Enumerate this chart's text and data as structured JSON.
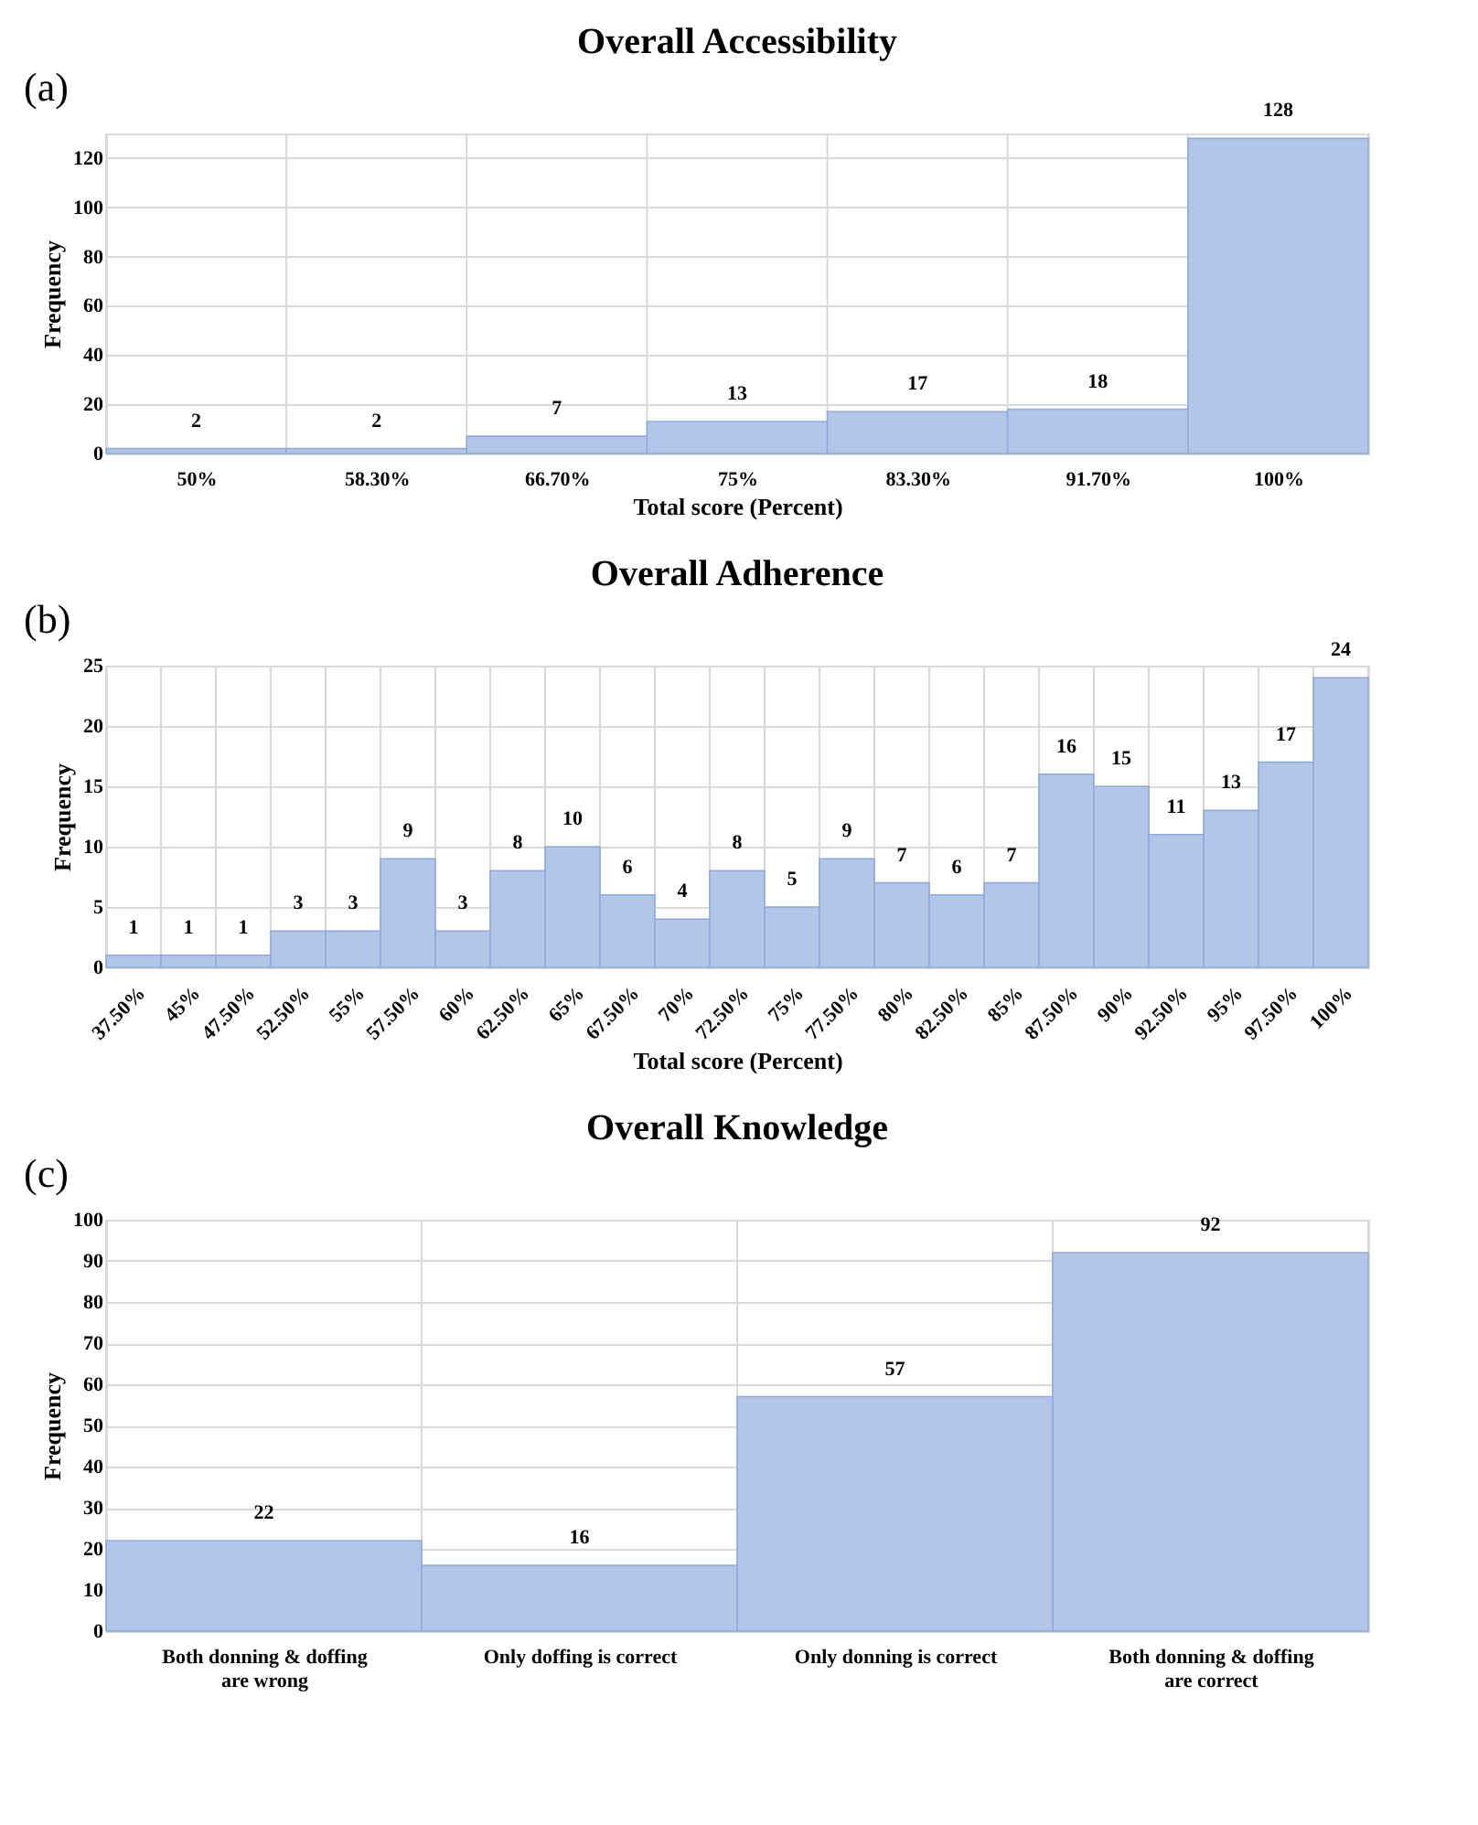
{
  "chart_data": [
    {
      "type": "bar",
      "title": "Overall Accessibility",
      "xlabel": "Total score (Percent)",
      "ylabel": "Frequency",
      "annotations": [
        "(a)"
      ],
      "categories": [
        "50%",
        "58.30%",
        "66.70%",
        "75%",
        "83.30%",
        "91.70%",
        "100%"
      ],
      "values": [
        2,
        2,
        7,
        13,
        17,
        18,
        128
      ],
      "color": "#b4c6e7",
      "ylim": [
        0,
        130
      ],
      "yticks": [
        0,
        20,
        40,
        60,
        80,
        100,
        120
      ],
      "grid": true,
      "data_labels": true
    },
    {
      "type": "bar",
      "title": "Overall Adherence",
      "xlabel": "Total score (Percent)",
      "ylabel": "Frequency",
      "annotations": [
        "(b)"
      ],
      "categories": [
        "37.50%",
        "45%",
        "47.50%",
        "52.50%",
        "55%",
        "57.50%",
        "60%",
        "62.50%",
        "65%",
        "67.50%",
        "70%",
        "72.50%",
        "75%",
        "77.50%",
        "80%",
        "82.50%",
        "85%",
        "87.50%",
        "90%",
        "92.50%",
        "95%",
        "97.50%",
        "100%"
      ],
      "values": [
        1,
        1,
        1,
        3,
        3,
        9,
        3,
        8,
        10,
        6,
        4,
        8,
        5,
        9,
        7,
        6,
        7,
        16,
        15,
        11,
        13,
        17,
        24
      ],
      "color": "#b4c6e7",
      "ylim": [
        0,
        25
      ],
      "yticks": [
        0,
        5,
        10,
        15,
        20,
        25
      ],
      "grid": true,
      "data_labels": true
    },
    {
      "type": "bar",
      "title": "Overall Knowledge",
      "ylabel": "Frequency",
      "annotations": [
        "(c)"
      ],
      "categories": [
        "Both donning & doffing are wrong",
        "Only doffing is correct",
        "Only donning is correct",
        "Both donning & doffing are correct"
      ],
      "values": [
        22,
        16,
        57,
        92
      ],
      "color": "#b4c6e7",
      "ylim": [
        0,
        100
      ],
      "yticks": [
        0,
        10,
        20,
        30,
        40,
        50,
        60,
        70,
        80,
        90,
        100
      ],
      "grid": true,
      "data_labels": true
    }
  ]
}
